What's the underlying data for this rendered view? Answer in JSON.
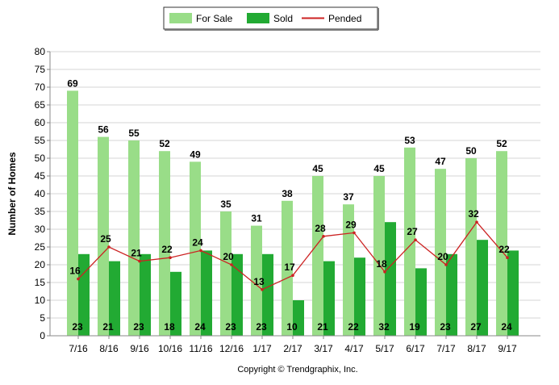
{
  "chart_data": {
    "type": "bar",
    "title": "",
    "xlabel": "",
    "ylabel": "Number of Homes",
    "ylim": [
      0,
      80
    ],
    "y_ticks": [
      0,
      5,
      10,
      15,
      20,
      25,
      30,
      35,
      40,
      45,
      50,
      55,
      60,
      65,
      70,
      75,
      80
    ],
    "grid": true,
    "legend_position": "top-center",
    "categories": [
      "7/16",
      "8/16",
      "9/16",
      "10/16",
      "11/16",
      "12/16",
      "1/17",
      "2/17",
      "3/17",
      "4/17",
      "5/17",
      "6/17",
      "7/17",
      "8/17",
      "9/17"
    ],
    "series": [
      {
        "name": "For Sale",
        "type": "bar",
        "color": "#99dd88",
        "values": [
          69,
          56,
          55,
          52,
          49,
          35,
          31,
          38,
          45,
          37,
          45,
          53,
          47,
          50,
          52
        ]
      },
      {
        "name": "Sold",
        "type": "bar",
        "color": "#22aa33",
        "values": [
          23,
          21,
          23,
          18,
          24,
          23,
          23,
          10,
          21,
          22,
          32,
          19,
          23,
          27,
          24
        ]
      },
      {
        "name": "Pended",
        "type": "line",
        "color": "#cc2222",
        "values": [
          16,
          25,
          21,
          22,
          24,
          20,
          13,
          17,
          28,
          29,
          18,
          27,
          20,
          32,
          22
        ]
      }
    ],
    "copyright": "Copyright © Trendgraphix, Inc."
  }
}
